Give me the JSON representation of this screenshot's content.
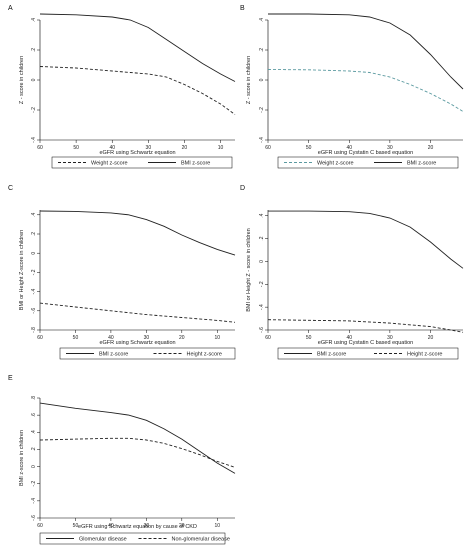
{
  "chart_data": [
    {
      "type": "line",
      "panel_label": "A",
      "xlabel": "eGFR using Schwartz equation",
      "ylabel": "Z - score in children",
      "xlim": [
        60,
        6
      ],
      "ylim": [
        -0.4,
        0.4
      ],
      "xticks": [
        60,
        50,
        40,
        30,
        20,
        10
      ],
      "yticks": [
        -0.4,
        -0.2,
        0,
        0.2,
        0.4
      ],
      "ytick_labels": [
        "-.4",
        "-.2",
        "0",
        ".2",
        ".4"
      ],
      "legend": "bottom",
      "series": [
        {
          "name": "Weight z-score",
          "style": "dashed",
          "color": "#222222",
          "x": [
            60,
            50,
            40,
            35,
            30,
            25,
            20,
            15,
            10,
            6
          ],
          "y": [
            0.09,
            0.08,
            0.06,
            0.05,
            0.04,
            0.02,
            -0.03,
            -0.09,
            -0.16,
            -0.23
          ]
        },
        {
          "name": "BMI z-score",
          "style": "solid",
          "color": "#222222",
          "x": [
            60,
            50,
            40,
            35,
            30,
            25,
            20,
            15,
            10,
            6
          ],
          "y": [
            0.44,
            0.435,
            0.42,
            0.4,
            0.35,
            0.27,
            0.19,
            0.11,
            0.04,
            -0.01
          ]
        }
      ]
    },
    {
      "type": "line",
      "panel_label": "B",
      "xlabel": "eGFR using Cystatin C based equation",
      "ylabel": "Z - score in children",
      "xlim": [
        60,
        12
      ],
      "ylim": [
        -0.4,
        0.4
      ],
      "xticks": [
        60,
        50,
        40,
        30,
        20
      ],
      "yticks": [
        -0.4,
        -0.2,
        0,
        0.2,
        0.4
      ],
      "ytick_labels": [
        "-.4",
        "-.2",
        "0",
        ".2",
        ".4"
      ],
      "legend": "bottom",
      "series": [
        {
          "name": "Weight z-score",
          "style": "dashed",
          "color": "#5b9aa0",
          "x": [
            60,
            50,
            40,
            35,
            30,
            25,
            20,
            15,
            12
          ],
          "y": [
            0.07,
            0.068,
            0.06,
            0.05,
            0.02,
            -0.03,
            -0.09,
            -0.16,
            -0.21
          ]
        },
        {
          "name": "BMI z-score",
          "style": "solid",
          "color": "#222222",
          "x": [
            60,
            50,
            40,
            35,
            30,
            25,
            20,
            15,
            12
          ],
          "y": [
            0.44,
            0.44,
            0.435,
            0.42,
            0.38,
            0.3,
            0.17,
            0.02,
            -0.06
          ]
        }
      ]
    },
    {
      "type": "line",
      "panel_label": "C",
      "xlabel": "eGFR using Schwartz equation",
      "ylabel": "BMI or Height Z-score in children",
      "xlim": [
        60,
        5
      ],
      "ylim": [
        -0.8,
        0.45
      ],
      "xticks": [
        60,
        50,
        40,
        30,
        20,
        10
      ],
      "yticks": [
        -0.8,
        -0.6,
        -0.4,
        -0.2,
        0,
        0.2,
        0.4
      ],
      "ytick_labels": [
        "-.8",
        "-.6",
        "-.4",
        "-.2",
        "0",
        ".2",
        ".4"
      ],
      "legend": "bottom",
      "series": [
        {
          "name": "BMI z-score",
          "style": "solid",
          "color": "#222222",
          "x": [
            60,
            50,
            40,
            35,
            30,
            25,
            20,
            15,
            10,
            5
          ],
          "y": [
            0.44,
            0.435,
            0.42,
            0.4,
            0.35,
            0.28,
            0.19,
            0.11,
            0.04,
            -0.02
          ]
        },
        {
          "name": "Height z-score",
          "style": "dashed",
          "color": "#222222",
          "x": [
            60,
            50,
            40,
            30,
            20,
            10,
            5
          ],
          "y": [
            -0.52,
            -0.56,
            -0.6,
            -0.64,
            -0.67,
            -0.7,
            -0.72
          ]
        }
      ]
    },
    {
      "type": "line",
      "panel_label": "D",
      "xlabel": "eGFR using Cystatin C based equation",
      "ylabel": "BMI or Height Z - score in children",
      "xlim": [
        60,
        12
      ],
      "ylim": [
        -0.6,
        0.45
      ],
      "xticks": [
        60,
        50,
        40,
        30,
        20
      ],
      "yticks": [
        -0.6,
        -0.4,
        -0.2,
        0,
        0.2,
        0.4
      ],
      "ytick_labels": [
        "-.6",
        "-.4",
        "-.2",
        "0",
        ".2",
        ".4"
      ],
      "legend": "bottom",
      "series": [
        {
          "name": "BMI z-score",
          "style": "solid",
          "color": "#222222",
          "x": [
            60,
            50,
            40,
            35,
            30,
            25,
            20,
            15,
            12
          ],
          "y": [
            0.44,
            0.44,
            0.435,
            0.42,
            0.38,
            0.3,
            0.17,
            0.02,
            -0.06
          ]
        },
        {
          "name": "Height z-score",
          "style": "dashed",
          "color": "#222222",
          "x": [
            60,
            50,
            40,
            30,
            20,
            15,
            12
          ],
          "y": [
            -0.51,
            -0.515,
            -0.52,
            -0.54,
            -0.57,
            -0.6,
            -0.62
          ]
        }
      ]
    },
    {
      "type": "line",
      "panel_label": "E",
      "xlabel": "eGFR using Schwartz equation by cause of CKD",
      "ylabel": "BMI z-score in children",
      "xlim": [
        60,
        5
      ],
      "ylim": [
        -0.6,
        0.8
      ],
      "xticks": [
        60,
        50,
        40,
        30,
        20,
        10
      ],
      "yticks": [
        -0.6,
        -0.4,
        -0.2,
        0,
        0.2,
        0.4,
        0.6,
        0.8
      ],
      "ytick_labels": [
        "-.6",
        "-.4",
        "-.2",
        "0",
        ".2",
        ".4",
        ".6",
        ".8"
      ],
      "legend": "bottom",
      "series": [
        {
          "name": "Glomerular disease",
          "style": "solid",
          "color": "#222222",
          "x": [
            60,
            50,
            40,
            35,
            30,
            25,
            20,
            15,
            10,
            5
          ],
          "y": [
            0.74,
            0.68,
            0.63,
            0.6,
            0.54,
            0.44,
            0.32,
            0.18,
            0.04,
            -0.08
          ]
        },
        {
          "name": "Non-glomerular disease",
          "style": "dashed",
          "color": "#222222",
          "x": [
            60,
            50,
            40,
            35,
            30,
            25,
            20,
            15,
            10,
            5
          ],
          "y": [
            0.31,
            0.32,
            0.33,
            0.33,
            0.31,
            0.27,
            0.21,
            0.14,
            0.06,
            -0.01
          ]
        }
      ]
    }
  ]
}
